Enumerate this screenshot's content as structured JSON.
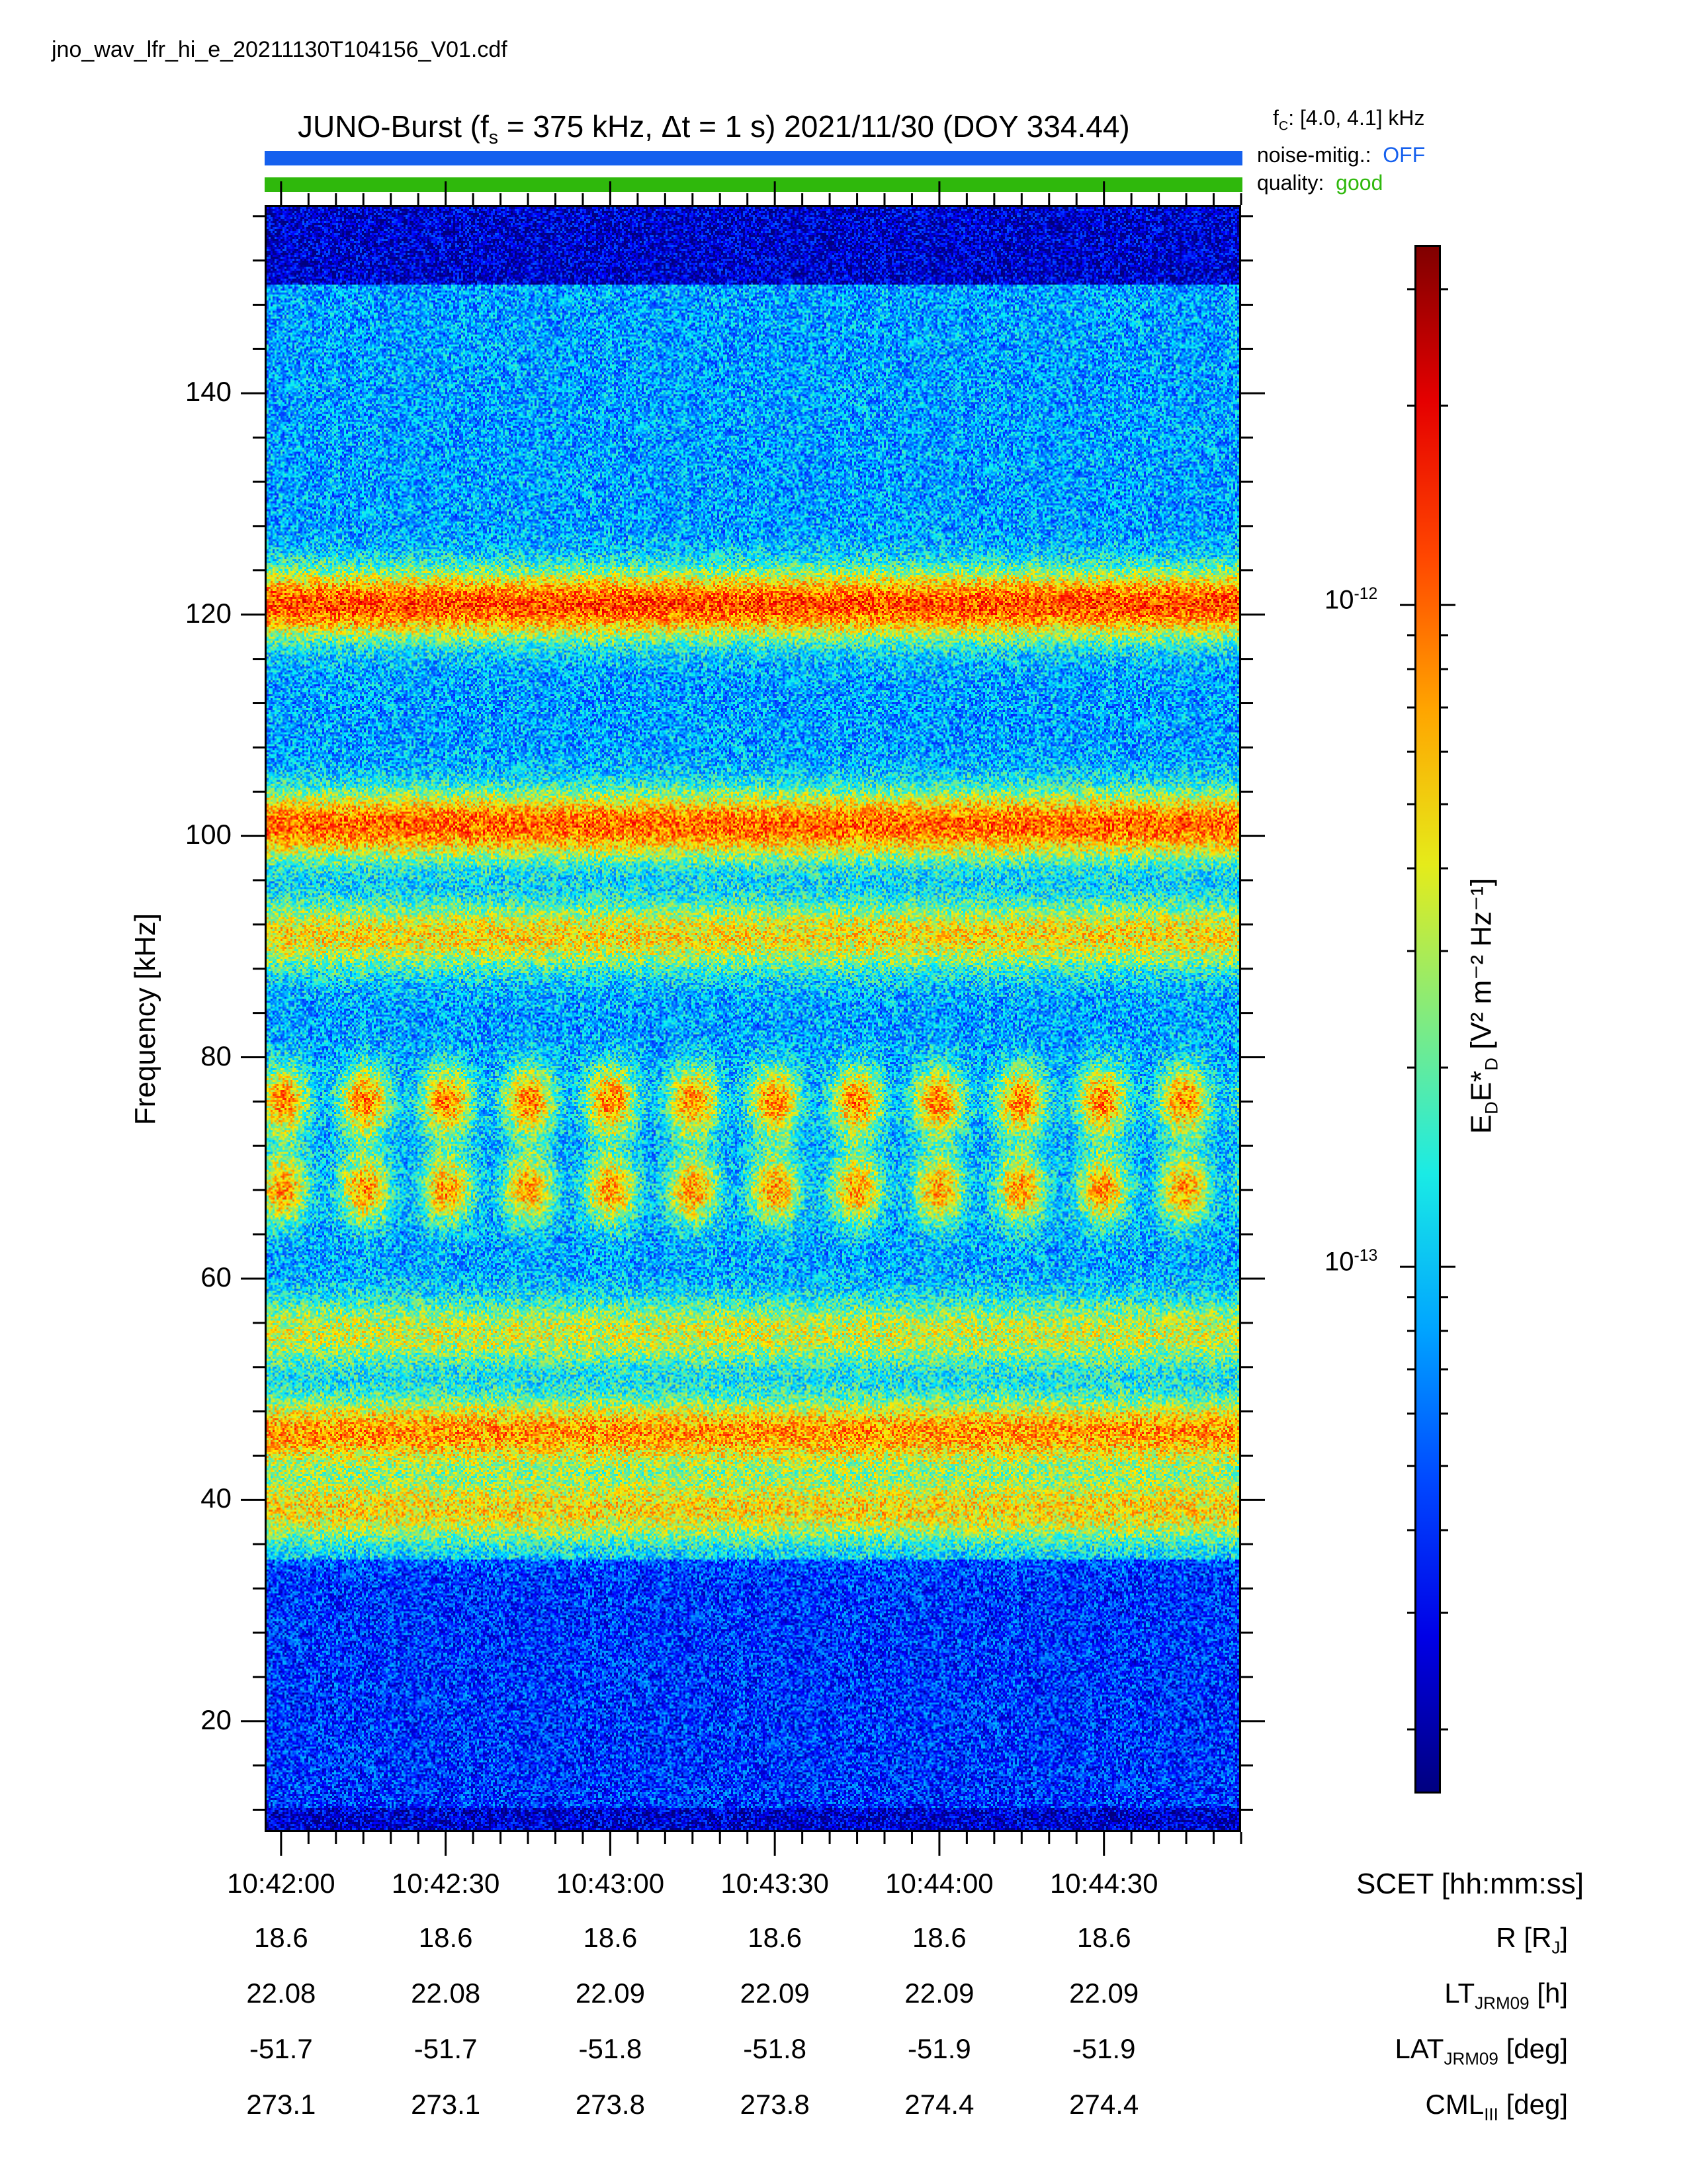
{
  "filename": "jno_wav_lfr_hi_e_20211130T104156_V01.cdf",
  "title_parts": {
    "prefix": "JUNO-Burst (f",
    "sub": "s",
    "mid": " = 375 kHz, Δt = 1 s)  2021/11/30 (DOY 334.44)"
  },
  "status": {
    "fc_prefix": "f",
    "fc_sub": "C",
    "fc_value": ": [4.0, 4.1] kHz",
    "noise_label": "noise-mitig.:",
    "noise_value": "OFF",
    "quality_label": "quality:",
    "quality_value": "good"
  },
  "colors": {
    "noise_bar": "#1560ee",
    "quality_bar": "#2fb80c",
    "noise_value_text": "#1560ee",
    "quality_value_text": "#2fb80c"
  },
  "chart_data": {
    "type": "heatmap",
    "ylabel": "Frequency [kHz]",
    "ylim": [
      10,
      157
    ],
    "y_ticks": [
      20,
      40,
      60,
      80,
      100,
      120,
      140
    ],
    "x_ticks": [
      "10:42:00",
      "10:42:30",
      "10:43:00",
      "10:43:30",
      "10:44:00",
      "10:44:30"
    ],
    "x_tick_seconds": [
      0,
      30,
      60,
      90,
      120,
      150
    ],
    "xlim_seconds": [
      -3,
      175
    ],
    "colorbar": {
      "scale": "log",
      "label_main": "E",
      "label_sub1": "D",
      "label_mid": "E*",
      "label_sub2": "D",
      "label_units": "[V² m⁻² Hz⁻¹]",
      "tick_labels": [
        {
          "base": "10",
          "exp": "-12",
          "value": 1e-12
        },
        {
          "base": "10",
          "exp": "-13",
          "value": 1e-13
        }
      ],
      "range": [
        1.6e-14,
        3.5e-12
      ]
    },
    "emission_bands_khz": [
      {
        "center": 121,
        "intensity": 0.9
      },
      {
        "center": 101,
        "intensity": 0.85
      },
      {
        "center": 91,
        "intensity": 0.6
      },
      {
        "center": 76,
        "intensity": 0.8
      },
      {
        "center": 68,
        "intensity": 0.75
      },
      {
        "center": 55,
        "intensity": 0.5
      },
      {
        "center": 46,
        "intensity": 0.75
      },
      {
        "center": 39,
        "intensity": 0.6
      }
    ],
    "ephemeris": {
      "header": "SCET [hh:mm:ss]",
      "rows": [
        {
          "label_main": "R [R",
          "label_sub": "J",
          "label_end": "]",
          "values": [
            "18.6",
            "18.6",
            "18.6",
            "18.6",
            "18.6",
            "18.6"
          ]
        },
        {
          "label_main": "LT",
          "label_sub": "JRM09",
          "label_end": " [h]",
          "values": [
            "22.08",
            "22.08",
            "22.09",
            "22.09",
            "22.09",
            "22.09"
          ]
        },
        {
          "label_main": "LAT",
          "label_sub": "JRM09",
          "label_end": " [deg]",
          "values": [
            "-51.7",
            "-51.7",
            "-51.8",
            "-51.8",
            "-51.9",
            "-51.9"
          ]
        },
        {
          "label_main": "CML",
          "label_sub": "III",
          "label_end": " [deg]",
          "values": [
            "273.1",
            "273.1",
            "273.8",
            "273.8",
            "274.4",
            "274.4"
          ]
        }
      ]
    }
  }
}
